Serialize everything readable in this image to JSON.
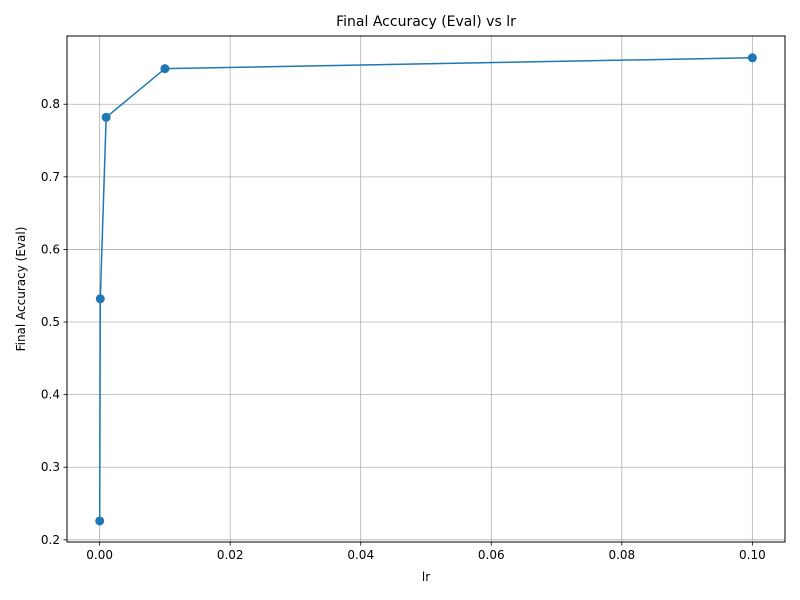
{
  "chart_data": {
    "type": "line",
    "title": "Final Accuracy (Eval) vs lr",
    "xlabel": "lr",
    "ylabel": "Final Accuracy (Eval)",
    "xlim": [
      -0.005,
      0.105
    ],
    "ylim": [
      0.197,
      0.894
    ],
    "x_ticks": [
      0.0,
      0.02,
      0.04,
      0.06,
      0.08,
      0.1
    ],
    "x_tick_labels": [
      "0.00",
      "0.02",
      "0.04",
      "0.06",
      "0.08",
      "0.10"
    ],
    "y_ticks": [
      0.2,
      0.3,
      0.4,
      0.5,
      0.6,
      0.7,
      0.8
    ],
    "y_tick_labels": [
      "0.2",
      "0.3",
      "0.4",
      "0.5",
      "0.6",
      "0.7",
      "0.8"
    ],
    "grid": true,
    "marker": "circle",
    "color": "#1f77b4",
    "series": [
      {
        "x": [
          1e-05,
          0.0001,
          0.001,
          0.01,
          0.1
        ],
        "y": [
          0.226,
          0.532,
          0.782,
          0.849,
          0.864
        ]
      }
    ]
  }
}
